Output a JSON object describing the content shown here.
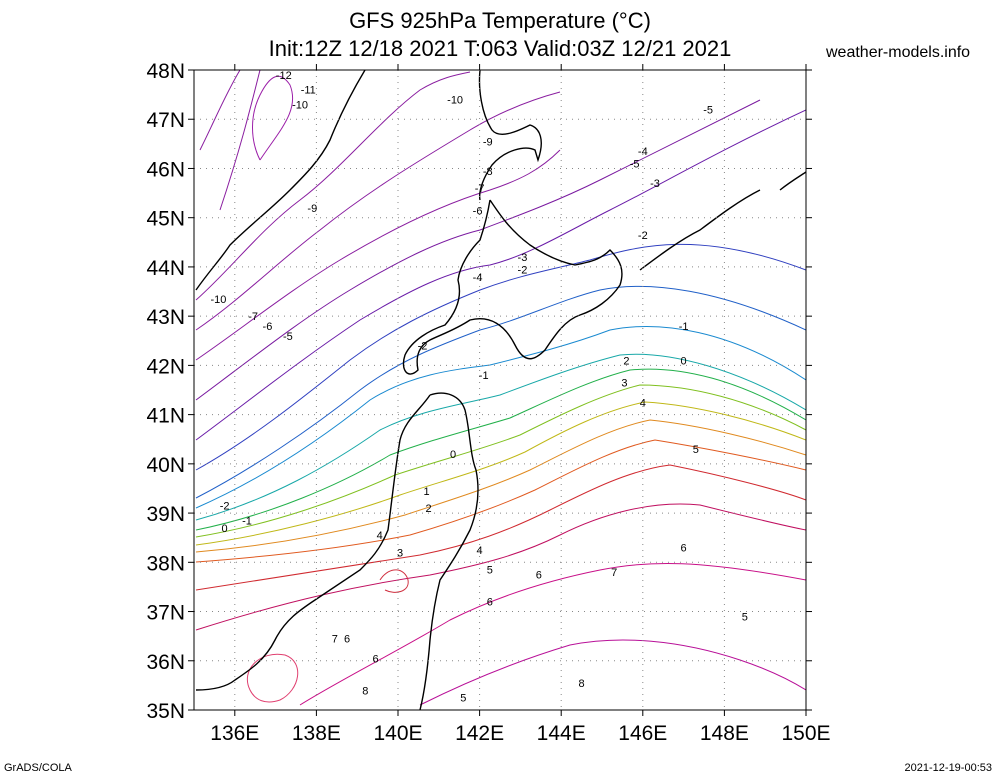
{
  "header": {
    "title_line1": "GFS 925hPa Temperature (°C)",
    "title_line2": "Init:12Z 12/18 2021 T:063 Valid:03Z 12/21 2021",
    "site": "weather-models.info"
  },
  "footer": {
    "software": "GrADS/COLA",
    "timestamp": "2021-12-19-00:53"
  },
  "map": {
    "lon_range": [
      135,
      150
    ],
    "lat_range": [
      35,
      48
    ],
    "lat_labels": [
      "48N",
      "47N",
      "46N",
      "45N",
      "44N",
      "43N",
      "42N",
      "41N",
      "40N",
      "39N",
      "38N",
      "37N",
      "36N",
      "35N"
    ],
    "lon_labels": [
      "136E",
      "138E",
      "140E",
      "142E",
      "144E",
      "146E",
      "148E",
      "150E"
    ],
    "grid_style": "dotted",
    "contour_labels": [
      {
        "text": "-12",
        "lon": 137.2,
        "lat": 47.9
      },
      {
        "text": "-11",
        "lon": 137.8,
        "lat": 47.6
      },
      {
        "text": "-10",
        "lon": 137.6,
        "lat": 47.3
      },
      {
        "text": "-10",
        "lon": 141.4,
        "lat": 47.4
      },
      {
        "text": "-9",
        "lon": 137.9,
        "lat": 45.2
      },
      {
        "text": "-9",
        "lon": 142.2,
        "lat": 46.55
      },
      {
        "text": "-8",
        "lon": 142.2,
        "lat": 45.95
      },
      {
        "text": "-7",
        "lon": 142.0,
        "lat": 45.6
      },
      {
        "text": "-6",
        "lon": 141.95,
        "lat": 45.15
      },
      {
        "text": "-5",
        "lon": 147.6,
        "lat": 47.2
      },
      {
        "text": "-5",
        "lon": 145.8,
        "lat": 46.1
      },
      {
        "text": "-4",
        "lon": 146.0,
        "lat": 46.35
      },
      {
        "text": "-3",
        "lon": 146.3,
        "lat": 45.7
      },
      {
        "text": "-2",
        "lon": 146.0,
        "lat": 44.65
      },
      {
        "text": "-3",
        "lon": 143.05,
        "lat": 44.2
      },
      {
        "text": "-2",
        "lon": 143.05,
        "lat": 43.95
      },
      {
        "text": "-4",
        "lon": 141.95,
        "lat": 43.8
      },
      {
        "text": "-10",
        "lon": 135.6,
        "lat": 43.35
      },
      {
        "text": "-7",
        "lon": 136.45,
        "lat": 43.0
      },
      {
        "text": "-6",
        "lon": 136.8,
        "lat": 42.8
      },
      {
        "text": "-5",
        "lon": 137.3,
        "lat": 42.6
      },
      {
        "text": "-2",
        "lon": 140.6,
        "lat": 42.4
      },
      {
        "text": "-1",
        "lon": 142.1,
        "lat": 41.8
      },
      {
        "text": "-1",
        "lon": 147.0,
        "lat": 42.8
      },
      {
        "text": "0",
        "lon": 147.0,
        "lat": 42.1
      },
      {
        "text": "2",
        "lon": 145.6,
        "lat": 42.1
      },
      {
        "text": "3",
        "lon": 145.55,
        "lat": 41.65
      },
      {
        "text": "4",
        "lon": 146.0,
        "lat": 41.25
      },
      {
        "text": "5",
        "lon": 147.3,
        "lat": 40.3
      },
      {
        "text": "0",
        "lon": 141.35,
        "lat": 40.2
      },
      {
        "text": "1",
        "lon": 140.7,
        "lat": 39.45
      },
      {
        "text": "2",
        "lon": 140.75,
        "lat": 39.1
      },
      {
        "text": "-2",
        "lon": 135.75,
        "lat": 39.15
      },
      {
        "text": "-1",
        "lon": 136.3,
        "lat": 38.85
      },
      {
        "text": "0",
        "lon": 135.75,
        "lat": 38.7
      },
      {
        "text": "4",
        "lon": 139.55,
        "lat": 38.55
      },
      {
        "text": "3",
        "lon": 140.05,
        "lat": 38.2
      },
      {
        "text": "4",
        "lon": 142.0,
        "lat": 38.25
      },
      {
        "text": "5",
        "lon": 142.25,
        "lat": 37.85
      },
      {
        "text": "6",
        "lon": 143.45,
        "lat": 37.75
      },
      {
        "text": "7",
        "lon": 145.3,
        "lat": 37.8
      },
      {
        "text": "6",
        "lon": 147.0,
        "lat": 38.3
      },
      {
        "text": "5",
        "lon": 148.5,
        "lat": 36.9
      },
      {
        "text": "6",
        "lon": 142.25,
        "lat": 37.2
      },
      {
        "text": "7",
        "lon": 138.45,
        "lat": 36.45
      },
      {
        "text": "6",
        "lon": 138.75,
        "lat": 36.45
      },
      {
        "text": "6",
        "lon": 139.45,
        "lat": 36.05
      },
      {
        "text": "8",
        "lon": 139.2,
        "lat": 35.4
      },
      {
        "text": "8",
        "lon": 144.5,
        "lat": 35.55
      },
      {
        "text": "5",
        "lon": 141.6,
        "lat": 35.25
      }
    ]
  }
}
